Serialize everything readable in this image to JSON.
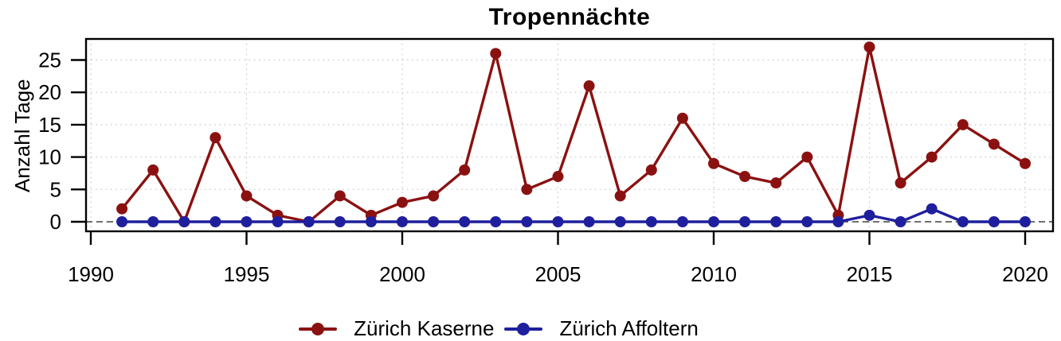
{
  "chart_data": {
    "type": "line",
    "title": "Tropennächte",
    "xlabel": "",
    "ylabel": "Anzahl Tage",
    "x": [
      1991,
      1992,
      1993,
      1994,
      1995,
      1996,
      1997,
      1998,
      1999,
      2000,
      2001,
      2002,
      2003,
      2004,
      2005,
      2006,
      2007,
      2008,
      2009,
      2010,
      2011,
      2012,
      2013,
      2014,
      2015,
      2016,
      2017,
      2018,
      2019,
      2020
    ],
    "series": [
      {
        "name": "Zürich Kaserne",
        "color": "#8B1111",
        "values": [
          2,
          8,
          0,
          13,
          4,
          1,
          0,
          4,
          1,
          3,
          4,
          8,
          26,
          5,
          7,
          21,
          4,
          8,
          16,
          9,
          7,
          6,
          10,
          1,
          27,
          6,
          10,
          15,
          12,
          9
        ]
      },
      {
        "name": "Zürich Affoltern",
        "color": "#1F1F9E",
        "values": [
          0,
          0,
          0,
          0,
          0,
          0,
          0,
          0,
          0,
          0,
          0,
          0,
          0,
          0,
          0,
          0,
          0,
          0,
          0,
          0,
          0,
          0,
          0,
          0,
          1,
          0,
          2,
          0,
          0,
          0
        ]
      }
    ],
    "x_ticks": [
      1990,
      1995,
      2000,
      2005,
      2010,
      2015,
      2020
    ],
    "y_ticks": [
      0,
      5,
      10,
      15,
      20,
      25
    ],
    "xlim": [
      1989.85,
      2020.95
    ],
    "ylim": [
      -1.5,
      28.3
    ],
    "grid": true,
    "zero_reference_line": "dashed",
    "legend_position": "bottom",
    "marker": "filled-circle"
  },
  "style": {
    "grid_color": "#c6c6c6",
    "zero_line_color": "#404040",
    "axis_color": "#000000",
    "background": "#ffffff",
    "text_color": "#000000"
  }
}
